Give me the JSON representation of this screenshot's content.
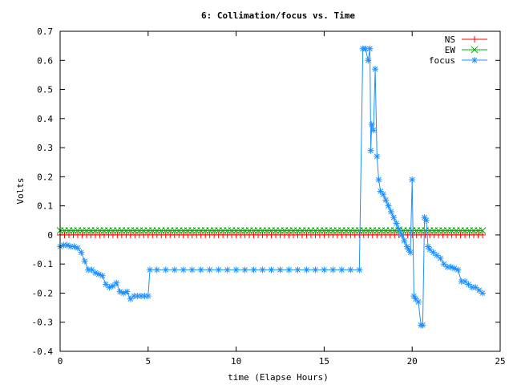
{
  "chart_data": {
    "type": "line",
    "title": "6: Collimation/focus vs. Time",
    "xlabel": "time (Elapse Hours)",
    "ylabel": "Volts",
    "xlim": [
      0,
      25
    ],
    "ylim": [
      -0.4,
      0.7
    ],
    "xticks": [
      0,
      5,
      10,
      15,
      20,
      25
    ],
    "xtick_labels": [
      "0",
      "5",
      "10",
      "15",
      "20",
      "25"
    ],
    "yticks": [
      -0.4,
      -0.3,
      -0.2,
      -0.1,
      0,
      0.1,
      0.2,
      0.3,
      0.4,
      0.5,
      0.6,
      0.7
    ],
    "ytick_labels": [
      "-0.4",
      "-0.3",
      "-0.2",
      "-0.1",
      "0",
      "0.1",
      "0.2",
      "0.3",
      "0.4",
      "0.5",
      "0.6",
      "0.7"
    ],
    "grid": false,
    "legend_position": "top-right",
    "series": [
      {
        "name": "NS",
        "color": "#ff0000",
        "marker": "plus",
        "x": [
          0,
          0.25,
          0.5,
          0.75,
          1,
          1.25,
          1.5,
          1.75,
          2,
          2.25,
          2.5,
          2.75,
          3,
          3.25,
          3.5,
          3.75,
          4,
          4.25,
          4.5,
          4.75,
          5,
          5.25,
          5.5,
          5.75,
          6,
          6.25,
          6.5,
          6.75,
          7,
          7.25,
          7.5,
          7.75,
          8,
          8.25,
          8.5,
          8.75,
          9,
          9.25,
          9.5,
          9.75,
          10,
          10.25,
          10.5,
          10.75,
          11,
          11.25,
          11.5,
          11.75,
          12,
          12.25,
          12.5,
          12.75,
          13,
          13.25,
          13.5,
          13.75,
          14,
          14.25,
          14.5,
          14.75,
          15,
          15.25,
          15.5,
          15.75,
          16,
          16.25,
          16.5,
          16.75,
          17,
          17.25,
          17.5,
          17.75,
          18,
          18.25,
          18.5,
          18.75,
          19,
          19.25,
          19.5,
          19.75,
          20,
          20.25,
          20.5,
          20.75,
          21,
          21.25,
          21.5,
          21.75,
          22,
          22.25,
          22.5,
          22.75,
          23,
          23.25,
          23.5,
          23.75,
          24
        ],
        "y": [
          0.0,
          0.0,
          0.0,
          0.0,
          0.0,
          0.0,
          0.0,
          0.0,
          0.0,
          0.0,
          0.0,
          0.0,
          0.0,
          0.0,
          0.0,
          0.0,
          0.0,
          0.0,
          0.0,
          0.0,
          0.0,
          0.0,
          0.0,
          0.0,
          0.0,
          0.0,
          0.0,
          0.0,
          0.0,
          0.0,
          0.0,
          0.0,
          0.0,
          0.0,
          0.0,
          0.0,
          0.0,
          0.0,
          0.0,
          0.0,
          0.0,
          0.0,
          0.0,
          0.0,
          0.0,
          0.0,
          0.0,
          0.0,
          0.0,
          0.0,
          0.0,
          0.0,
          0.0,
          0.0,
          0.0,
          0.0,
          0.0,
          0.0,
          0.0,
          0.0,
          0.0,
          0.0,
          0.0,
          0.0,
          0.0,
          0.0,
          0.0,
          0.0,
          0.0,
          0.0,
          0.0,
          0.0,
          0.0,
          0.0,
          0.0,
          0.0,
          0.0,
          0.0,
          0.0,
          0.0,
          0.0,
          0.0,
          0.0,
          0.0,
          0.0,
          0.0,
          0.0,
          0.0,
          0.0,
          0.0,
          0.0,
          0.0,
          0.0,
          0.0,
          0.0,
          0.0,
          0.0
        ]
      },
      {
        "name": "EW",
        "color": "#00b000",
        "marker": "cross",
        "x": [
          0,
          0.25,
          0.5,
          0.75,
          1,
          1.25,
          1.5,
          1.75,
          2,
          2.25,
          2.5,
          2.75,
          3,
          3.25,
          3.5,
          3.75,
          4,
          4.25,
          4.5,
          4.75,
          5,
          5.25,
          5.5,
          5.75,
          6,
          6.25,
          6.5,
          6.75,
          7,
          7.25,
          7.5,
          7.75,
          8,
          8.25,
          8.5,
          8.75,
          9,
          9.25,
          9.5,
          9.75,
          10,
          10.25,
          10.5,
          10.75,
          11,
          11.25,
          11.5,
          11.75,
          12,
          12.25,
          12.5,
          12.75,
          13,
          13.25,
          13.5,
          13.75,
          14,
          14.25,
          14.5,
          14.75,
          15,
          15.25,
          15.5,
          15.75,
          16,
          16.25,
          16.5,
          16.75,
          17,
          17.25,
          17.5,
          17.75,
          18,
          18.25,
          18.5,
          18.75,
          19,
          19.25,
          19.5,
          19.75,
          20,
          20.25,
          20.5,
          20.75,
          21,
          21.25,
          21.5,
          21.75,
          22,
          22.25,
          22.5,
          22.75,
          23,
          23.25,
          23.5,
          23.75,
          24
        ],
        "y": [
          0.015,
          0.015,
          0.015,
          0.015,
          0.015,
          0.015,
          0.015,
          0.015,
          0.015,
          0.015,
          0.015,
          0.015,
          0.015,
          0.015,
          0.015,
          0.015,
          0.015,
          0.015,
          0.015,
          0.015,
          0.015,
          0.015,
          0.015,
          0.015,
          0.015,
          0.015,
          0.015,
          0.015,
          0.015,
          0.015,
          0.015,
          0.015,
          0.015,
          0.015,
          0.015,
          0.015,
          0.015,
          0.015,
          0.015,
          0.015,
          0.015,
          0.015,
          0.015,
          0.015,
          0.015,
          0.015,
          0.015,
          0.015,
          0.015,
          0.015,
          0.015,
          0.015,
          0.015,
          0.015,
          0.015,
          0.015,
          0.015,
          0.015,
          0.015,
          0.015,
          0.015,
          0.015,
          0.015,
          0.015,
          0.015,
          0.015,
          0.015,
          0.015,
          0.015,
          0.015,
          0.015,
          0.015,
          0.015,
          0.015,
          0.015,
          0.015,
          0.015,
          0.015,
          0.015,
          0.015,
          0.015,
          0.015,
          0.015,
          0.015,
          0.015,
          0.015,
          0.015,
          0.015,
          0.015,
          0.015,
          0.015,
          0.015,
          0.015,
          0.015,
          0.015,
          0.015,
          0.015
        ]
      },
      {
        "name": "focus",
        "color": "#1e90ff",
        "marker": "star",
        "x": [
          0,
          0.2,
          0.4,
          0.6,
          0.8,
          1.0,
          1.2,
          1.4,
          1.6,
          1.8,
          2.0,
          2.2,
          2.4,
          2.6,
          2.8,
          3.0,
          3.2,
          3.4,
          3.6,
          3.8,
          4.0,
          4.2,
          4.4,
          4.6,
          4.8,
          5.0,
          5.1,
          5.5,
          6.0,
          6.5,
          7.0,
          7.5,
          8.0,
          8.5,
          9.0,
          9.5,
          10.0,
          10.5,
          11.0,
          11.5,
          12.0,
          12.5,
          13.0,
          13.5,
          14.0,
          14.5,
          15.0,
          15.5,
          16.0,
          16.5,
          17.0,
          17.2,
          17.35,
          17.5,
          17.6,
          17.65,
          17.7,
          17.8,
          17.9,
          18.0,
          18.1,
          18.2,
          18.35,
          18.5,
          18.65,
          18.8,
          18.95,
          19.1,
          19.25,
          19.4,
          19.55,
          19.7,
          19.8,
          19.9,
          20.0,
          20.1,
          20.2,
          20.35,
          20.5,
          20.6,
          20.7,
          20.8,
          20.9,
          21.0,
          21.2,
          21.4,
          21.6,
          21.8,
          22.0,
          22.2,
          22.4,
          22.6,
          22.8,
          23.0,
          23.2,
          23.4,
          23.6,
          23.8,
          24.0
        ],
        "y": [
          -0.04,
          -0.035,
          -0.035,
          -0.04,
          -0.04,
          -0.045,
          -0.06,
          -0.09,
          -0.12,
          -0.12,
          -0.13,
          -0.135,
          -0.14,
          -0.17,
          -0.18,
          -0.175,
          -0.165,
          -0.195,
          -0.2,
          -0.195,
          -0.22,
          -0.21,
          -0.21,
          -0.21,
          -0.21,
          -0.21,
          -0.12,
          -0.12,
          -0.12,
          -0.12,
          -0.12,
          -0.12,
          -0.12,
          -0.12,
          -0.12,
          -0.12,
          -0.12,
          -0.12,
          -0.12,
          -0.12,
          -0.12,
          -0.12,
          -0.12,
          -0.12,
          -0.12,
          -0.12,
          -0.12,
          -0.12,
          -0.12,
          -0.12,
          -0.12,
          0.64,
          0.64,
          0.6,
          0.64,
          0.29,
          0.38,
          0.36,
          0.57,
          0.27,
          0.19,
          0.15,
          0.14,
          0.12,
          0.1,
          0.08,
          0.06,
          0.04,
          0.02,
          0.0,
          -0.02,
          -0.04,
          -0.05,
          -0.06,
          0.19,
          -0.21,
          -0.22,
          -0.23,
          -0.31,
          -0.31,
          0.06,
          0.05,
          -0.04,
          -0.05,
          -0.06,
          -0.07,
          -0.08,
          -0.1,
          -0.11,
          -0.11,
          -0.115,
          -0.12,
          -0.16,
          -0.16,
          -0.17,
          -0.18,
          -0.18,
          -0.19,
          -0.2
        ]
      }
    ]
  }
}
